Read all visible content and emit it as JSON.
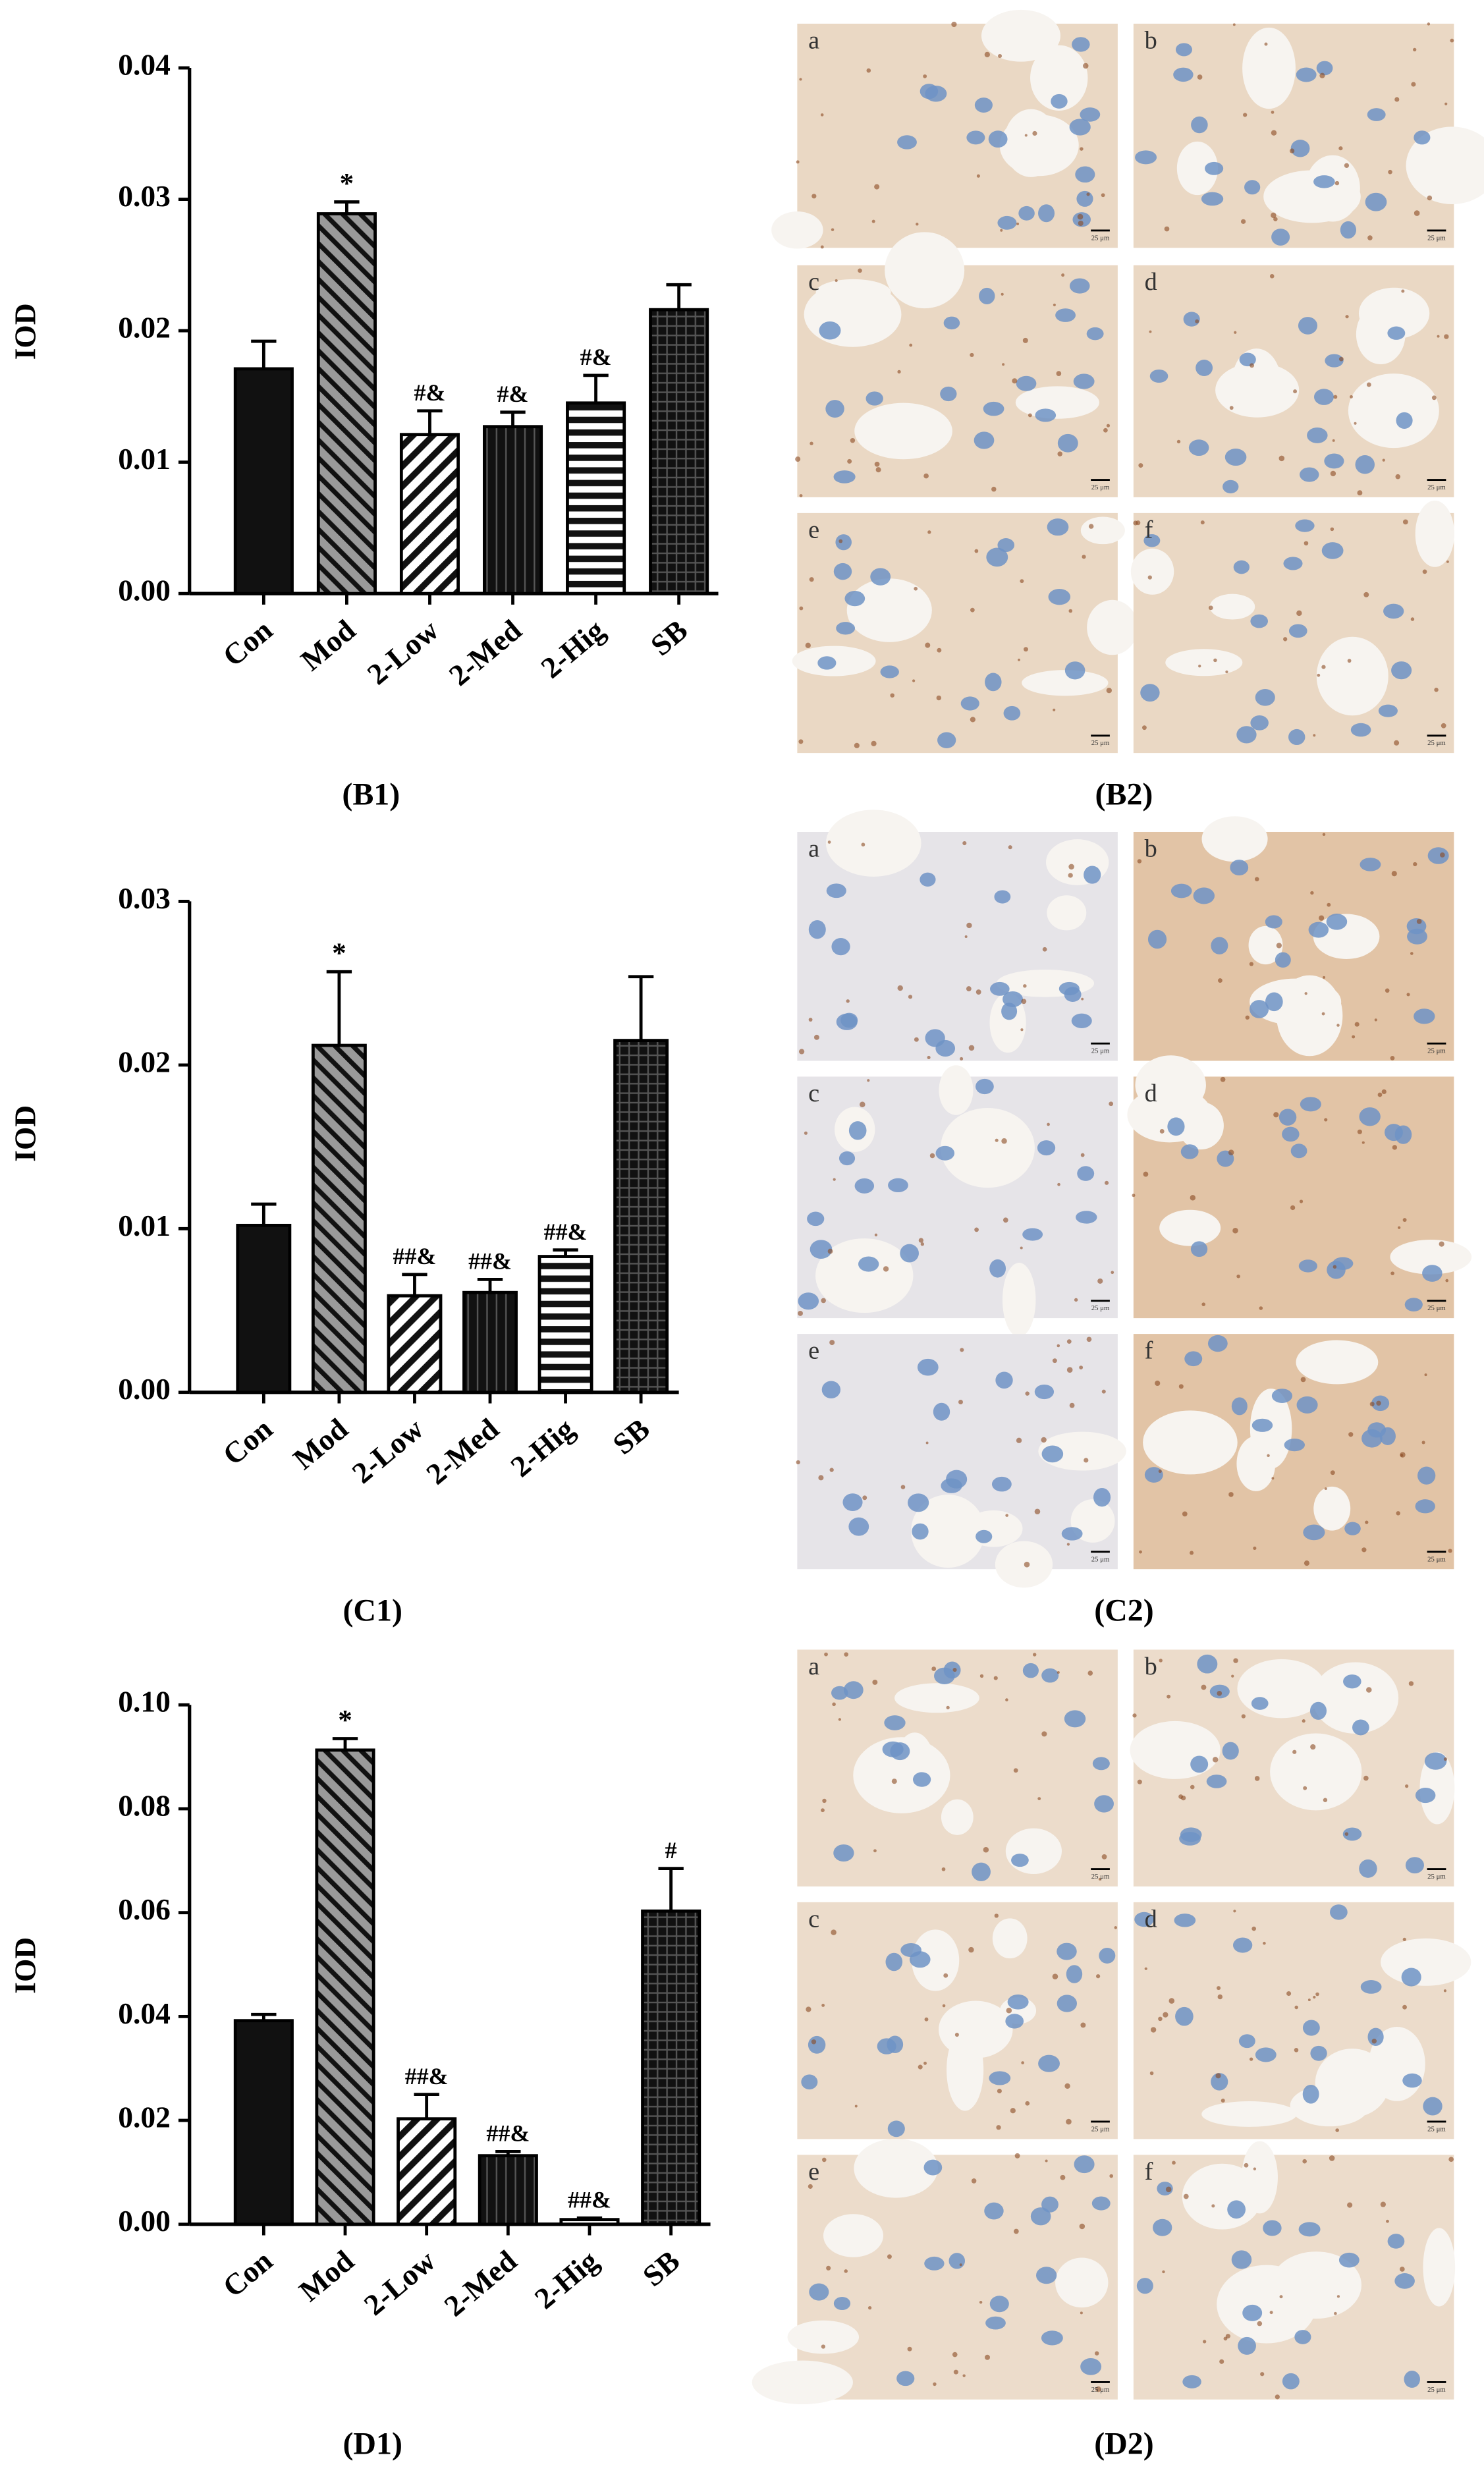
{
  "chart_data": [
    {
      "type": "bar",
      "panel_label": "(B1)",
      "ylabel": "IOD",
      "categories": [
        "Con",
        "Mod",
        "2-Low",
        "2-Med",
        "2-Hig",
        "SB"
      ],
      "values": [
        0.0171,
        0.0289,
        0.0121,
        0.0127,
        0.0145,
        0.0216
      ],
      "errors": [
        0.0021,
        0.0009,
        0.0018,
        0.0011,
        0.0021,
        0.0019
      ],
      "annotations": [
        null,
        "*",
        "#&",
        "#&",
        "#&",
        null
      ],
      "patterns": [
        "solid",
        "diagonal-gray",
        "diagonal",
        "vertical",
        "horizontal",
        "grid"
      ],
      "ylim": [
        0,
        0.04
      ],
      "yticks": [
        {
          "value": 0,
          "label": "0.00"
        },
        0.01,
        0.02,
        0.03,
        0.04
      ]
    },
    {
      "type": "bar",
      "panel_label": "(C1)",
      "ylabel": "IOD",
      "categories": [
        "Con",
        "Mod",
        "2-Low",
        "2-Med",
        "2-Hig",
        "SB"
      ],
      "values": [
        0.0102,
        0.0212,
        0.0059,
        0.0061,
        0.0083,
        0.0215
      ],
      "errors": [
        0.0013,
        0.0045,
        0.0013,
        0.0008,
        0.0004,
        0.0039
      ],
      "annotations": [
        null,
        "*",
        "##&",
        "##&",
        "##&",
        null
      ],
      "patterns": [
        "solid",
        "diagonal-gray",
        "diagonal",
        "vertical",
        "horizontal",
        "grid"
      ],
      "ylim": [
        0,
        0.03
      ],
      "yticks": [
        {
          "value": 0,
          "label": "0.00"
        },
        0.01,
        0.02,
        0.03
      ]
    },
    {
      "type": "bar",
      "panel_label": "(D1)",
      "ylabel": "IOD",
      "categories": [
        "Con",
        "Mod",
        "2-Low",
        "2-Med",
        "2-Hig",
        "SB"
      ],
      "values": [
        0.0392,
        0.0913,
        0.0203,
        0.0132,
        0.0009,
        0.0603
      ],
      "errors": [
        0.0012,
        0.0022,
        0.0047,
        0.0008,
        0.0003,
        0.0082
      ],
      "annotations": [
        null,
        "*",
        "##&",
        "##&",
        "##&",
        "#"
      ],
      "patterns": [
        "solid",
        "diagonal-gray",
        "diagonal",
        "vertical",
        "horizontal",
        "grid"
      ],
      "ylim": [
        0,
        0.1
      ],
      "yticks": [
        {
          "value": 0,
          "label": "0.00"
        },
        0.02,
        0.04,
        0.06,
        0.08,
        {
          "value": 0.1,
          "label": "0.10"
        }
      ]
    }
  ],
  "micrograph_panels": [
    {
      "panel_label": "(B2)",
      "tiles": [
        "a",
        "b",
        "c",
        "d",
        "e",
        "f"
      ],
      "scale_bar": "25 μm"
    },
    {
      "panel_label": "(C2)",
      "tiles": [
        "a",
        "b",
        "c",
        "d",
        "e",
        "f"
      ],
      "scale_bar": "25 μm"
    },
    {
      "panel_label": "(D2)",
      "tiles": [
        "a",
        "b",
        "c",
        "d",
        "e",
        "f"
      ],
      "scale_bar": "25 μm"
    }
  ]
}
